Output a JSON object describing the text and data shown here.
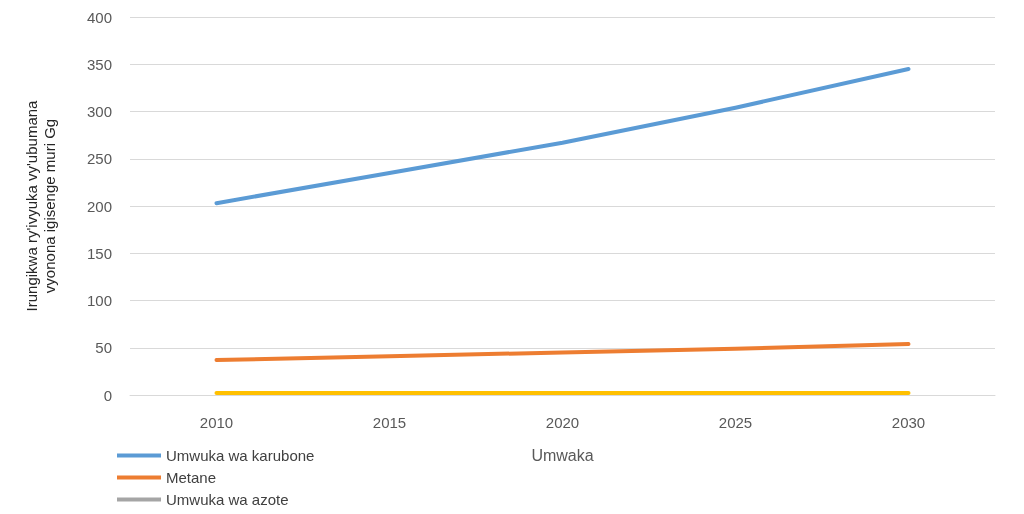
{
  "chart_data": {
    "type": "line",
    "xlabel": "Umwaka",
    "ylabel": "Irungikwa ry'ivyuka vy'ubumana\nvyonona igisenge muri Gg",
    "categories": [
      "2010",
      "2015",
      "2020",
      "2025",
      "2030"
    ],
    "series": [
      {
        "name": "Umwuka wa karubone",
        "color": "#5b9bd5",
        "values": [
          203,
          235,
          267,
          304,
          345
        ]
      },
      {
        "name": "Metane",
        "color": "#ed7d31",
        "values": [
          37,
          41,
          45,
          49,
          54
        ]
      },
      {
        "name": "Umwuka wa azote",
        "color": "#a5a5a5",
        "values": [
          null,
          null,
          null,
          null,
          null
        ]
      },
      {
        "color": "#ffc000",
        "values": [
          2,
          2,
          2,
          2,
          2
        ]
      }
    ],
    "ylim": [
      0,
      400
    ],
    "yticks": [
      0,
      50,
      100,
      150,
      200,
      250,
      300,
      350,
      400
    ],
    "grid": "y",
    "legend": "bottom left",
    "marker": "none",
    "line_style": "solid"
  }
}
